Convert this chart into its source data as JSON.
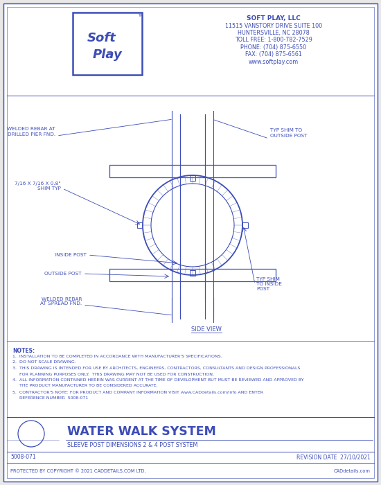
{
  "bg_color": "#e8e8e8",
  "paper_color": "#ffffff",
  "dc": "#3d4db7",
  "company_lines": [
    "SOFT PLAY, LLC",
    "11515 VANSTORY DRIVE SUITE 100",
    "HUNTERSVILLE, NC 28078",
    "TOLL FREE: 1-800-782-7529",
    "PHONE: (704) 875-6550",
    "FAX: (704) 875-6561",
    "www.softplay.com"
  ],
  "drawing_title": "WATER WALK SYSTEM",
  "drawing_subtitle": "SLEEVE POST DIMENSIONS 2 & 4 POST SYSTEM",
  "ref_number": "5008-071",
  "revision_date": "REVISION DATE  27/10/2021",
  "copyright": "PROTECTED BY COPYRIGHT © 2021 CADDETAILS.COM LTD.",
  "website": "CADdetails.com",
  "side_view_label": "SIDE VIEW",
  "label_welded_rebar_pier": "WELDED REBAR AT\nDRILLED PIER FND.",
  "label_shim_typ": "7/16 X 7/16 X 0.8\"\nSHIM TYP",
  "label_inside_post": "INSIDE POST",
  "label_outside_post": "OUTSIDE POST",
  "label_welded_rebar_spread": "WELDED REBAR\nAT SPREAD FND.",
  "label_typ_shim_outside": "TYP SHIM TO\nOUTSIDE POST",
  "label_typ_shim_inside": "TYP SHIM\nTO INSIDE\nPOST",
  "note_lines": [
    "NOTES:",
    "1.  INSTALLATION TO BE COMPLETED IN ACCORDANCE WITH MANUFACTURER'S SPECIFICATIONS.",
    "2.  DO NOT SCALE DRAWING.",
    "3.  THIS DRAWING IS INTENDED FOR USE BY ARCHITECTS, ENGINEERS, CONTRACTORS, CONSULTANTS AND DESIGN PROFESSIONALS",
    "     FOR PLANNING PURPOSES ONLY.  THIS DRAWING MAY NOT BE USED FOR CONSTRUCTION.",
    "4.  ALL INFORMATION CONTAINED HEREIN WAS CURRENT AT THE TIME OF DEVELOPMENT BUT MUST BE REVIEWED AND APPROVED BY",
    "     THE PRODUCT MANUFACTURER TO BE CONSIDERED ACCURATE.",
    "5.  CONTRACTOR'S NOTE: FOR PRODUCT AND COMPANY INFORMATION VISIT www.CADdetails.com/info AND ENTER",
    "     REFERENCE NUMBER  5008-071"
  ]
}
